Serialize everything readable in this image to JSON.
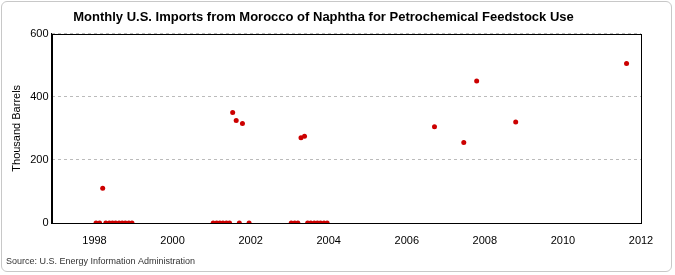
{
  "chart_data": {
    "type": "scatter",
    "title": "Monthly U.S. Imports from Morocco of Naphtha for Petrochemical Feedstock Use",
    "y_label": "Thousand Barrels",
    "source": "Source: U.S. Energy Information Administration",
    "x": [
      1998.04,
      1998.13,
      1998.21,
      1998.29,
      1998.38,
      1998.46,
      1998.54,
      1998.63,
      1998.71,
      1998.79,
      1998.88,
      1998.96,
      2001.04,
      2001.13,
      2001.21,
      2001.29,
      2001.38,
      2001.46,
      2001.54,
      2001.63,
      2001.71,
      2001.79,
      2001.96,
      2003.04,
      2003.13,
      2003.21,
      2003.29,
      2003.38,
      2003.46,
      2003.54,
      2003.63,
      2003.71,
      2003.79,
      2003.88,
      2003.96,
      2006.71,
      2007.46,
      2007.79,
      2008.79,
      2011.63
    ],
    "values": [
      0,
      0,
      110,
      0,
      0,
      0,
      0,
      0,
      0,
      0,
      0,
      0,
      0,
      0,
      0,
      0,
      0,
      0,
      350,
      325,
      0,
      315,
      0,
      0,
      0,
      0,
      270,
      275,
      0,
      0,
      0,
      0,
      0,
      0,
      0,
      305,
      255,
      450,
      320,
      505
    ],
    "color": "#cc0000",
    "marker": "circle",
    "xlim": [
      1996.9,
      2012
    ],
    "xticks": [
      1998,
      2000,
      2002,
      2004,
      2006,
      2008,
      2010,
      2012
    ],
    "ylim": [
      0,
      600
    ],
    "yticks": [
      0,
      200,
      400,
      600
    ],
    "grid": true
  }
}
